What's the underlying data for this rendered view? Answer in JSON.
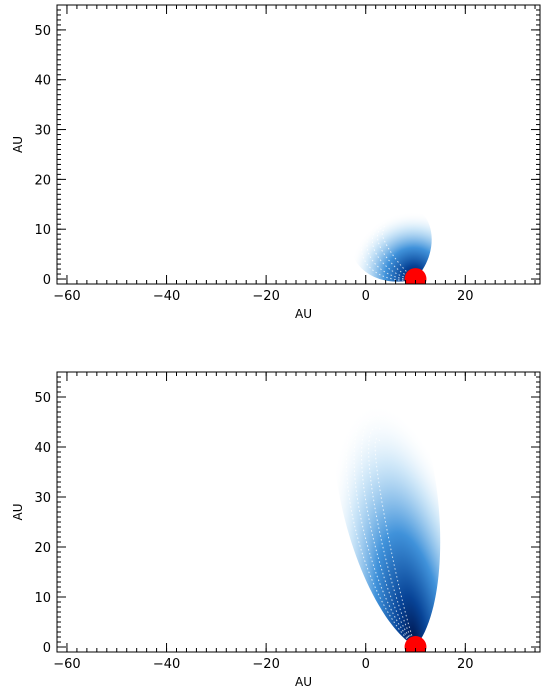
{
  "chart_data": [
    {
      "type": "heatmap",
      "title": "",
      "xlabel": "AU",
      "ylabel": "AU",
      "xlim": [
        -62,
        35
      ],
      "ylim": [
        -1,
        55
      ],
      "x_major_ticks": [
        -60,
        -40,
        -20,
        0,
        20
      ],
      "y_major_ticks": [
        0,
        10,
        20,
        30,
        40,
        50
      ],
      "x_minor_step": 2,
      "y_minor_step": 1,
      "grid": false,
      "colormap": [
        "#ffffff",
        "#9fd0f3",
        "#2b86d6",
        "#0a4fa8",
        "#001a55"
      ],
      "star": {
        "x": 10,
        "y": 0,
        "radius": 2.2,
        "color": "#ff0000"
      },
      "plume": {
        "origin_x": 10,
        "origin_y": 0,
        "spread_x": 11,
        "spread_y": 8,
        "tilt_deg": 58
      }
    },
    {
      "type": "heatmap",
      "title": "",
      "xlabel": "AU",
      "ylabel": "AU",
      "xlim": [
        -62,
        35
      ],
      "ylim": [
        -1,
        55
      ],
      "x_major_ticks": [
        -60,
        -40,
        -20,
        0,
        20
      ],
      "y_major_ticks": [
        0,
        10,
        20,
        30,
        40,
        50
      ],
      "x_minor_step": 2,
      "y_minor_step": 1,
      "grid": false,
      "colormap": [
        "#ffffff",
        "#9fd0f3",
        "#2b86d6",
        "#0a4fa8",
        "#001a55"
      ],
      "star": {
        "x": 10,
        "y": 0,
        "radius": 2.2,
        "color": "#ff0000"
      },
      "plume": {
        "origin_x": 10,
        "origin_y": 0,
        "spread_x": 13,
        "spread_y": 29,
        "tilt_deg": 80
      }
    }
  ]
}
